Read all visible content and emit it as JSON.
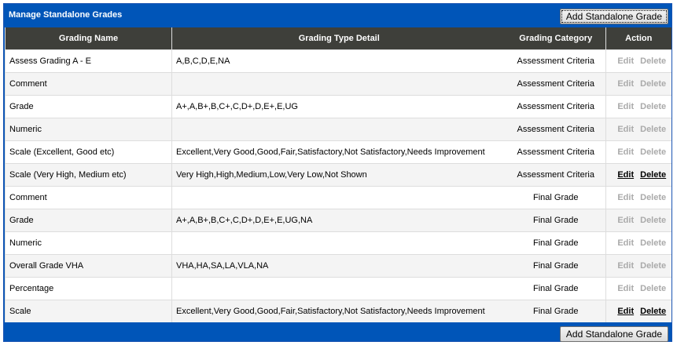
{
  "title": "Manage Standalone Grades",
  "add_label": "Add Standalone Grade",
  "headers": [
    "Grading Name",
    "Grading Type Detail",
    "Grading Category",
    "Action"
  ],
  "edit_label": "Edit",
  "delete_label": "Delete",
  "rows": [
    {
      "name": "Assess Grading A - E",
      "detail": "A,B,C,D,E,NA",
      "category": "Assessment Criteria",
      "enabled": false
    },
    {
      "name": "Comment",
      "detail": "",
      "category": "Assessment Criteria",
      "enabled": false
    },
    {
      "name": "Grade",
      "detail": "A+,A,B+,B,C+,C,D+,D,E+,E,UG",
      "category": "Assessment Criteria",
      "enabled": false
    },
    {
      "name": "Numeric",
      "detail": "",
      "category": "Assessment Criteria",
      "enabled": false
    },
    {
      "name": "Scale (Excellent, Good etc)",
      "detail": "Excellent,Very Good,Good,Fair,Satisfactory,Not Satisfactory,Needs Improvement",
      "category": "Assessment Criteria",
      "enabled": false
    },
    {
      "name": "Scale (Very High, Medium etc)",
      "detail": "Very High,High,Medium,Low,Very Low,Not Shown",
      "category": "Assessment Criteria",
      "enabled": true
    },
    {
      "name": "Comment",
      "detail": "",
      "category": "Final Grade",
      "enabled": false
    },
    {
      "name": "Grade",
      "detail": "A+,A,B+,B,C+,C,D+,D,E+,E,UG,NA",
      "category": "Final Grade",
      "enabled": false
    },
    {
      "name": "Numeric",
      "detail": "",
      "category": "Final Grade",
      "enabled": false
    },
    {
      "name": "Overall Grade VHA",
      "detail": "VHA,HA,SA,LA,VLA,NA",
      "category": "Final Grade",
      "enabled": false
    },
    {
      "name": "Percentage",
      "detail": "",
      "category": "Final Grade",
      "enabled": false
    },
    {
      "name": "Scale",
      "detail": "Excellent,Very Good,Good,Fair,Satisfactory,Not Satisfactory,Needs Improvement",
      "category": "Final Grade",
      "enabled": true
    }
  ]
}
